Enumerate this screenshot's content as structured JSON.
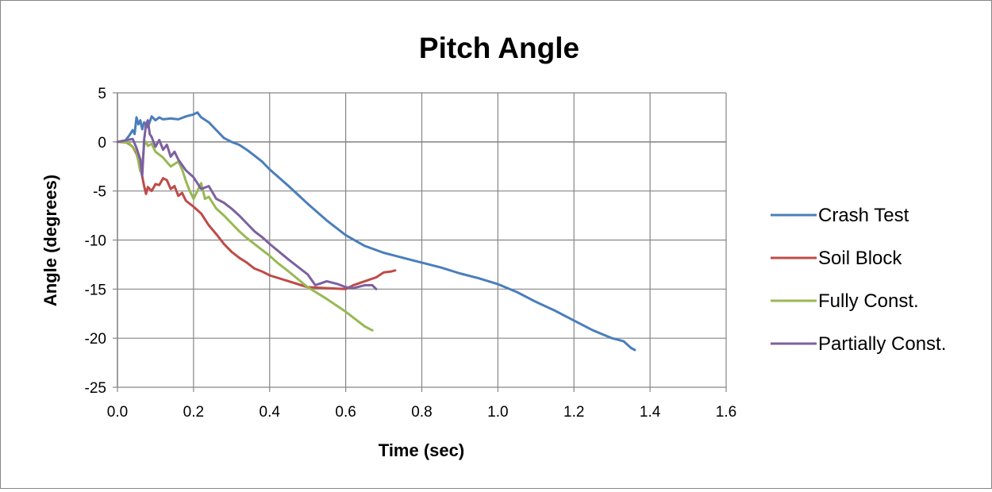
{
  "chart_data": {
    "type": "line",
    "title": "Pitch Angle",
    "xlabel": "Time (sec)",
    "ylabel": "Angle (degrees)",
    "xlim": [
      0,
      1.6
    ],
    "ylim": [
      -25,
      5
    ],
    "x_ticks": [
      0.0,
      0.2,
      0.4,
      0.6,
      0.8,
      1.0,
      1.2,
      1.4,
      1.6
    ],
    "x_tick_labels": [
      "0.0",
      "0.2",
      "0.4",
      "0.6",
      "0.8",
      "1.0",
      "1.2",
      "1.4",
      "1.6"
    ],
    "y_ticks": [
      5,
      0,
      -5,
      -10,
      -15,
      -20,
      -25
    ],
    "y_tick_labels": [
      "5",
      "0",
      "-5",
      "-10",
      "-15",
      "-20",
      "-25"
    ],
    "grid": true,
    "legend_position": "right",
    "series": [
      {
        "name": "Crash Test",
        "color": "#4A7EBB",
        "x": [
          0,
          0.02,
          0.03,
          0.04,
          0.045,
          0.05,
          0.055,
          0.06,
          0.065,
          0.07,
          0.08,
          0.09,
          0.1,
          0.11,
          0.12,
          0.14,
          0.16,
          0.18,
          0.2,
          0.21,
          0.22,
          0.24,
          0.26,
          0.28,
          0.3,
          0.32,
          0.34,
          0.36,
          0.38,
          0.4,
          0.45,
          0.5,
          0.55,
          0.6,
          0.65,
          0.7,
          0.75,
          0.8,
          0.85,
          0.9,
          0.95,
          1.0,
          1.05,
          1.1,
          1.15,
          1.2,
          1.25,
          1.3,
          1.33,
          1.35,
          1.36
        ],
        "y": [
          0,
          0.1,
          0.6,
          1.2,
          0.8,
          2.5,
          1.8,
          2.2,
          1.3,
          2.0,
          1.5,
          2.6,
          2.2,
          2.5,
          2.3,
          2.4,
          2.3,
          2.6,
          2.8,
          3.0,
          2.5,
          2.0,
          1.2,
          0.4,
          0.0,
          -0.3,
          -0.8,
          -1.4,
          -2.0,
          -2.8,
          -4.5,
          -6.3,
          -8.0,
          -9.5,
          -10.6,
          -11.3,
          -11.8,
          -12.3,
          -12.8,
          -13.4,
          -13.9,
          -14.5,
          -15.3,
          -16.3,
          -17.2,
          -18.2,
          -19.2,
          -20.0,
          -20.3,
          -21.0,
          -21.2
        ]
      },
      {
        "name": "Soil Block",
        "color": "#BE4B48",
        "x": [
          0,
          0.02,
          0.03,
          0.04,
          0.05,
          0.06,
          0.07,
          0.075,
          0.08,
          0.09,
          0.1,
          0.11,
          0.12,
          0.13,
          0.14,
          0.15,
          0.16,
          0.17,
          0.18,
          0.2,
          0.22,
          0.24,
          0.26,
          0.28,
          0.3,
          0.32,
          0.34,
          0.36,
          0.38,
          0.4,
          0.45,
          0.5,
          0.55,
          0.6,
          0.62,
          0.65,
          0.68,
          0.7,
          0.72,
          0.73
        ],
        "y": [
          0,
          0.0,
          -0.2,
          -0.5,
          -1.2,
          -2.5,
          -4.5,
          -5.3,
          -4.6,
          -5.0,
          -4.3,
          -4.4,
          -3.7,
          -3.9,
          -4.8,
          -4.5,
          -5.5,
          -5.2,
          -6.0,
          -6.6,
          -7.3,
          -8.5,
          -9.4,
          -10.4,
          -11.2,
          -11.8,
          -12.3,
          -12.9,
          -13.2,
          -13.6,
          -14.2,
          -14.8,
          -14.9,
          -15.0,
          -14.6,
          -14.2,
          -13.8,
          -13.3,
          -13.2,
          -13.1
        ]
      },
      {
        "name": "Fully Const.",
        "color": "#98B954",
        "x": [
          0,
          0.03,
          0.05,
          0.06,
          0.065,
          0.07,
          0.075,
          0.08,
          0.09,
          0.1,
          0.12,
          0.14,
          0.16,
          0.17,
          0.18,
          0.19,
          0.2,
          0.22,
          0.23,
          0.24,
          0.26,
          0.28,
          0.3,
          0.32,
          0.34,
          0.36,
          0.38,
          0.4,
          0.42,
          0.45,
          0.5,
          0.55,
          0.6,
          0.65,
          0.67
        ],
        "y": [
          0,
          -0.1,
          -1.0,
          -3.0,
          -2.5,
          -0.3,
          0.0,
          -0.4,
          -0.2,
          -1.0,
          -1.6,
          -2.5,
          -2.0,
          -2.8,
          -4.0,
          -5.0,
          -5.8,
          -4.2,
          -5.8,
          -5.6,
          -6.8,
          -7.5,
          -8.3,
          -9.1,
          -9.8,
          -10.4,
          -11.0,
          -11.6,
          -12.3,
          -13.2,
          -14.8,
          -16.0,
          -17.3,
          -18.8,
          -19.2
        ]
      },
      {
        "name": "Partially Const.",
        "color": "#7D60A0",
        "x": [
          0,
          0.04,
          0.05,
          0.06,
          0.065,
          0.07,
          0.075,
          0.08,
          0.085,
          0.09,
          0.1,
          0.11,
          0.12,
          0.13,
          0.14,
          0.15,
          0.16,
          0.18,
          0.2,
          0.22,
          0.24,
          0.26,
          0.28,
          0.3,
          0.32,
          0.34,
          0.36,
          0.38,
          0.4,
          0.45,
          0.5,
          0.52,
          0.55,
          0.58,
          0.6,
          0.62,
          0.65,
          0.67,
          0.68
        ],
        "y": [
          0,
          0.3,
          -0.6,
          -1.8,
          -3.5,
          0.2,
          1.8,
          2.2,
          0.8,
          0.5,
          -0.5,
          0.2,
          -0.8,
          -0.3,
          -1.5,
          -1.0,
          -1.8,
          -2.9,
          -3.6,
          -4.8,
          -4.5,
          -5.8,
          -6.2,
          -6.8,
          -7.5,
          -8.3,
          -9.1,
          -9.7,
          -10.4,
          -12.0,
          -13.5,
          -14.6,
          -14.2,
          -14.5,
          -14.8,
          -14.9,
          -14.6,
          -14.6,
          -15.0
        ]
      }
    ]
  }
}
